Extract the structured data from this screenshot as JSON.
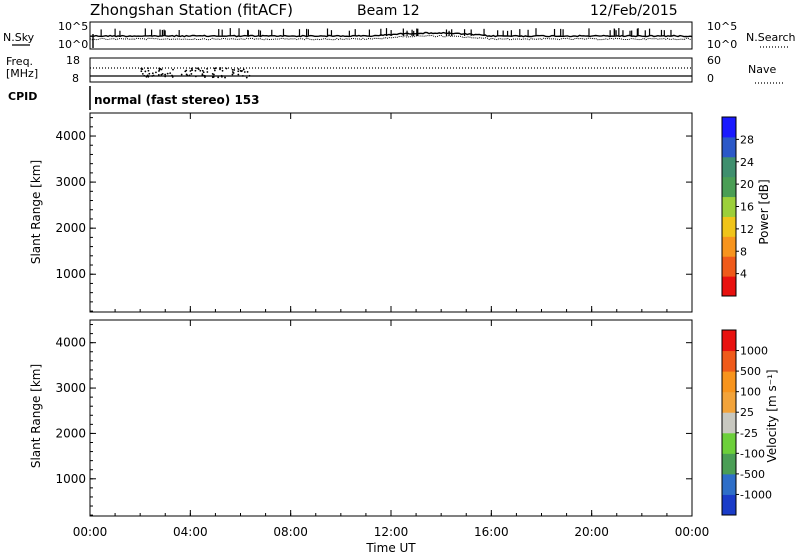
{
  "header": {
    "station": "Zhongshan Station (fitACF)",
    "beam": "Beam 12",
    "date": "12/Feb/2015"
  },
  "noise_panel": {
    "left_label": "N.Sky",
    "right_label": "N.Search",
    "yticks": [
      "10^5",
      "10^0"
    ]
  },
  "freq_panel": {
    "left_label_1": "Freq.",
    "left_label_2": "[MHz]",
    "right_label": "Nave",
    "left_ticks": [
      "18",
      "8"
    ],
    "right_ticks": [
      "60",
      "0"
    ]
  },
  "cpid": {
    "label": "CPID",
    "mode": "normal (fast stereo) 153"
  },
  "colors": {
    "power": [
      "#1a1aff",
      "#2b58c8",
      "#3f8f6e",
      "#4a9e55",
      "#9ccf3a",
      "#f0c419",
      "#f7941d",
      "#ef5a1a",
      "#e8110f"
    ],
    "velocity": [
      "#e8110f",
      "#ef5a1a",
      "#f7941d",
      "#f2a33a",
      "#c8c8c0",
      "#6ccf3a",
      "#4a9e55",
      "#2e6ec8",
      "#1a3cc8"
    ]
  },
  "chart_data": [
    {
      "type": "heatmap",
      "title": "",
      "xlabel": "Time UT",
      "ylabel": "Slant Range [km]",
      "xlim": [
        "00:00",
        "00:00"
      ],
      "x_ticks": [
        "00:00",
        "04:00",
        "08:00",
        "12:00",
        "16:00",
        "20:00",
        "00:00"
      ],
      "ylim": [
        180,
        4500
      ],
      "y_ticks": [
        1000,
        2000,
        3000,
        4000
      ],
      "colorbar": {
        "label": "Power [dB]",
        "ticks": [
          "28",
          "24",
          "20",
          "16",
          "12",
          "8",
          "4"
        ],
        "range": [
          0,
          30
        ]
      }
    },
    {
      "type": "heatmap",
      "title": "",
      "xlabel": "Time UT",
      "ylabel": "Slant Range [km]",
      "xlim": [
        "00:00",
        "00:00"
      ],
      "x_ticks": [
        "00:00",
        "04:00",
        "08:00",
        "12:00",
        "16:00",
        "20:00",
        "00:00"
      ],
      "ylim": [
        180,
        4500
      ],
      "y_ticks": [
        1000,
        2000,
        3000,
        4000
      ],
      "colorbar": {
        "label": "Velocity [m s⁻¹]",
        "ticks": [
          "1000",
          "500",
          "100",
          "25",
          "-25",
          "-100",
          "-500",
          "-1000"
        ]
      }
    }
  ]
}
